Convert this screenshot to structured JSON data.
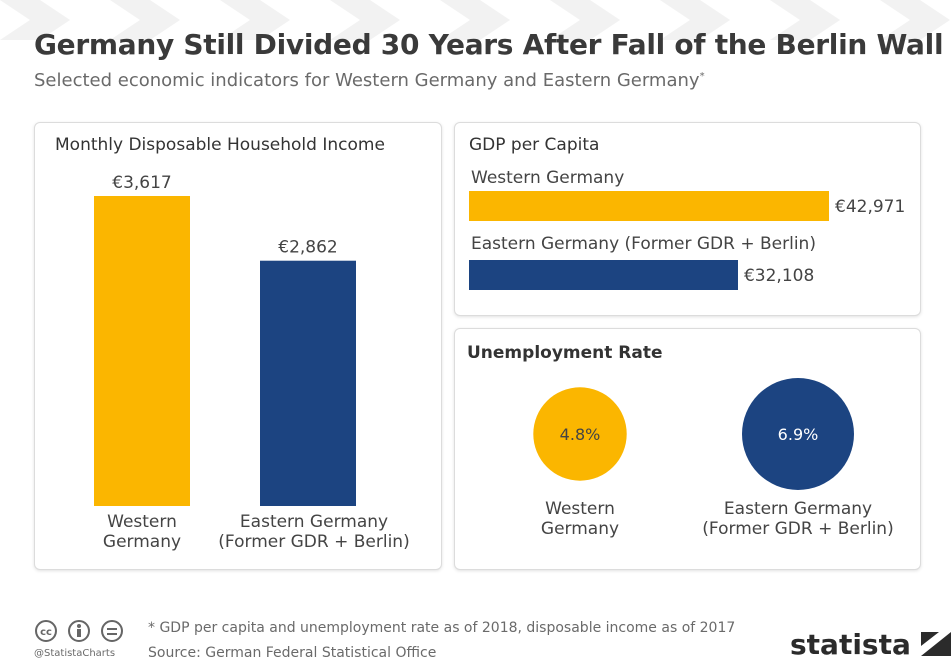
{
  "header": {
    "title": "Germany Still Divided 30 Years After Fall of the Berlin Wall",
    "subtitle": "Selected economic indicators for Western Germany and Eastern Germany",
    "subtitle_marker": "*"
  },
  "colors": {
    "west": "#fbb600",
    "east": "#1c4481"
  },
  "chart_data": [
    {
      "type": "bar",
      "title": "Monthly Disposable Household Income",
      "categories": [
        "Western Germany",
        "Eastern Germany (Former GDR + Berlin)"
      ],
      "category_lines": [
        [
          "Western",
          "Germany"
        ],
        [
          "Eastern Germany",
          "(Former GDR + Berlin)"
        ]
      ],
      "values": [
        3617,
        2862
      ],
      "value_labels": [
        "€3,617",
        "€2,862"
      ],
      "orientation": "vertical"
    },
    {
      "type": "bar",
      "title": "GDP per Capita",
      "categories": [
        "Western Germany",
        "Eastern Germany (Former GDR + Berlin)"
      ],
      "values": [
        42971,
        32108
      ],
      "value_labels": [
        "€42,971",
        "€32,108"
      ],
      "orientation": "horizontal"
    },
    {
      "type": "bubble",
      "title": "Unemployment Rate",
      "categories": [
        "Western Germany",
        "Eastern Germany (Former GDR + Berlin)"
      ],
      "category_lines": [
        [
          "Western",
          "Germany"
        ],
        [
          "Eastern Germany",
          "(Former GDR + Berlin)"
        ]
      ],
      "values": [
        4.8,
        6.9
      ],
      "value_labels": [
        "4.8%",
        "6.9%"
      ]
    }
  ],
  "footer": {
    "note": "* GDP per capita and unemployment rate as of 2018, disposable income as of 2017",
    "source": "Source: German Federal Statistical Office",
    "handle": "@StatistaCharts",
    "logo": "statista"
  }
}
